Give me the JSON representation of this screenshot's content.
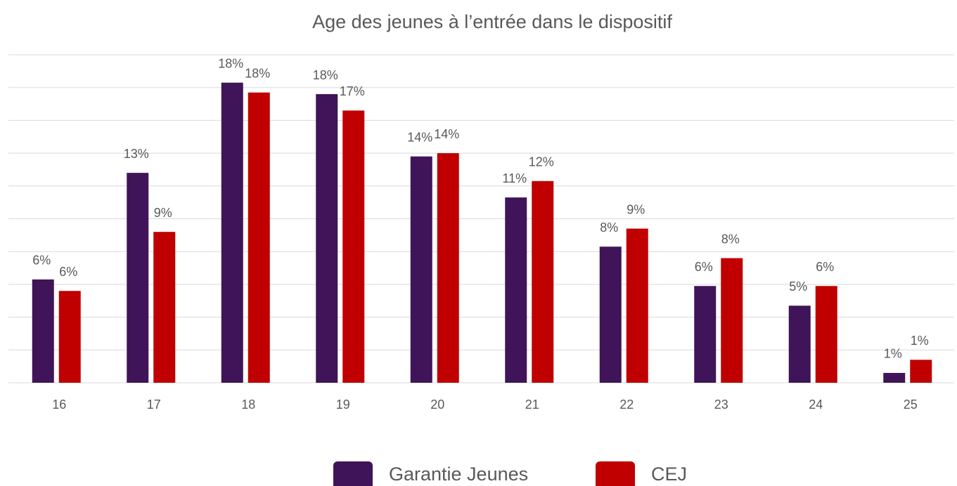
{
  "chart_data": {
    "type": "bar",
    "title": "Age des jeunes à l’entrée dans le dispositif",
    "categories": [
      "16",
      "17",
      "18",
      "19",
      "20",
      "21",
      "22",
      "23",
      "24",
      "25"
    ],
    "series": [
      {
        "name": "Garantie Jeunes",
        "color": "#3f1458",
        "values": [
          6.3,
          12.8,
          18.3,
          17.6,
          13.8,
          11.3,
          8.3,
          5.9,
          4.7,
          0.6
        ],
        "value_labels": [
          "6%",
          "13%",
          "18%",
          "18%",
          "14%",
          "11%",
          "8%",
          "6%",
          "5%",
          "1%"
        ]
      },
      {
        "name": "CEJ",
        "color": "#c00000",
        "values": [
          5.6,
          9.2,
          17.7,
          16.6,
          14.0,
          12.3,
          9.4,
          7.6,
          5.9,
          1.4
        ],
        "value_labels": [
          "6%",
          "9%",
          "18%",
          "17%",
          "14%",
          "12%",
          "9%",
          "8%",
          "6%",
          "1%"
        ]
      }
    ],
    "ylim": [
      0,
      20
    ],
    "yticks": [
      0,
      2,
      4,
      6,
      8,
      10,
      12,
      14,
      16,
      18,
      20
    ],
    "grid": true,
    "legend": "bottom"
  }
}
